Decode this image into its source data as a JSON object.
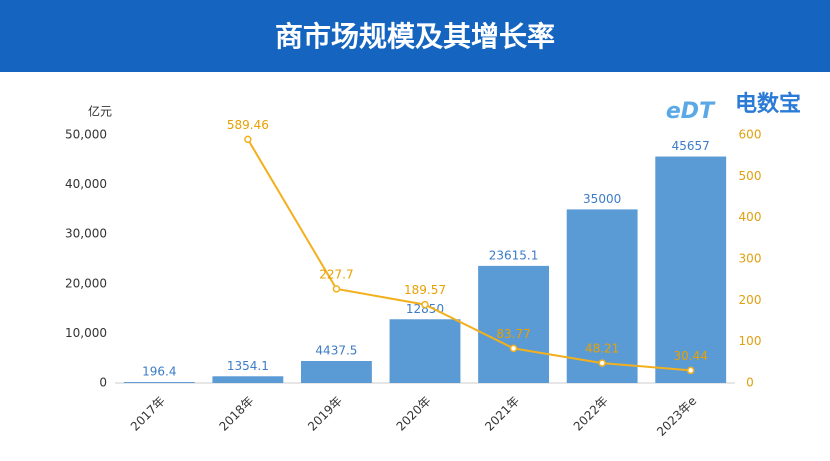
{
  "chart_data": {
    "type": "bar",
    "title": "商市场规模及其增长率",
    "brand": "电数宝",
    "brand_mark": "eDT",
    "y_axis_label": "亿元",
    "categories": [
      "2017年",
      "2018年",
      "2019年",
      "2020年",
      "2021年",
      "2022年",
      "2023年e"
    ],
    "series": [
      {
        "name": "市场规模",
        "type": "bar",
        "color": "#5b9bd5",
        "values": [
          196.4,
          1354.1,
          4437.5,
          12850,
          23615.1,
          35000,
          45657
        ]
      },
      {
        "name": "增长率",
        "type": "line",
        "axis": "y2",
        "color": "#f2b01e",
        "values": [
          null,
          589.46,
          227.7,
          189.57,
          83.77,
          48.21,
          30.44
        ]
      }
    ],
    "ylim": [
      0,
      50000
    ],
    "yticks": [
      0,
      {
        "value": 10000,
        "label": "10,000"
      },
      {
        "value": 20000,
        "label": "20,000"
      },
      {
        "value": 30000,
        "label": "30,000"
      },
      {
        "value": 40000,
        "label": "40,000"
      },
      {
        "value": 50000,
        "label": "50,000"
      }
    ],
    "y2lim": [
      0,
      600
    ],
    "y2ticks": [
      0,
      100,
      200,
      300,
      400,
      500,
      600
    ]
  }
}
